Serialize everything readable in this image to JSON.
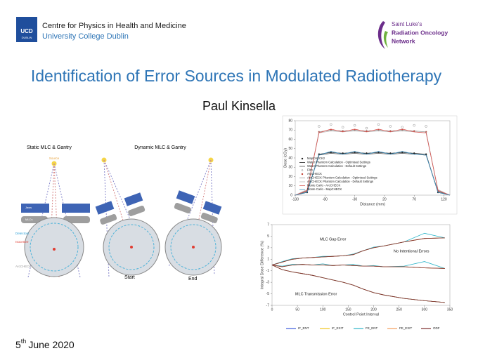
{
  "header": {
    "centre": "Centre for Physics in Health and Medicine",
    "university": "University College Dublin",
    "logo_text": [
      "UCD",
      "DUBLIN"
    ],
    "partner": [
      "Saint Luke's",
      "Radiation Oncology",
      "Network"
    ]
  },
  "title": "Identification of Error Sources in Modulated Radiotherapy",
  "author": "Paul Kinsella",
  "date": {
    "day": "5",
    "suffix": "th",
    "rest": "June 2020"
  },
  "diagram": {
    "static_title": "Static MLC & Gantry",
    "dynamic_title": "Dynamic MLC & Gantry",
    "source": "Source",
    "jaws": "Jaws",
    "mlcs": "MLCs",
    "detectors": "Detectors",
    "isocentre": "Isocentre",
    "arccheck": "ArcCHECK",
    "start": "Start",
    "end": "End"
  },
  "chart_data": [
    {
      "type": "line",
      "xlabel": "Distance (mm)",
      "ylabel": "Dose (cGy)",
      "x": [
        -130,
        -110,
        -90,
        -70,
        -50,
        -30,
        -10,
        10,
        30,
        50,
        70,
        90,
        110,
        130
      ],
      "xlim": [
        -130,
        130
      ],
      "xticks": [
        -130,
        -80,
        -30,
        20,
        70,
        120
      ],
      "ylim": [
        0,
        80
      ],
      "yticks": [
        0,
        10,
        20,
        30,
        40,
        50,
        60,
        70,
        80
      ],
      "series": [
        {
          "name": "MapCHECK2",
          "color": "#1a1a1a",
          "marker": "dot",
          "values": [
            null,
            3,
            44,
            46,
            45,
            46,
            45,
            46,
            45,
            46,
            45,
            44,
            3,
            null
          ]
        },
        {
          "name": "Water Phantom Calculation - Optimised Settings",
          "color": "#222222",
          "values": [
            0,
            3,
            44,
            46,
            45,
            46,
            45,
            46,
            45,
            46,
            45,
            44,
            3,
            0
          ]
        },
        {
          "name": "Water Phantom Calculation - Default Settings",
          "color": "#555555",
          "values": [
            0,
            4,
            43,
            45,
            44,
            45,
            44,
            45,
            44,
            45,
            44,
            43,
            4,
            0
          ]
        },
        {
          "name": "Film",
          "color": "#888888",
          "marker": "circle",
          "values": [
            null,
            null,
            74,
            76,
            73,
            75,
            72,
            76,
            74,
            73,
            75,
            74,
            null,
            null
          ]
        },
        {
          "name": "ArcCHECK",
          "color": "#c0392b",
          "marker": "dot",
          "values": [
            null,
            5,
            68,
            70,
            69,
            70,
            69,
            70,
            69,
            70,
            69,
            68,
            5,
            null
          ]
        },
        {
          "name": "ArcCHECK Phantom Calculation - Optimised Settings",
          "color": "#999999",
          "values": [
            0,
            5,
            68,
            70,
            69,
            70,
            69,
            70,
            69,
            70,
            69,
            68,
            5,
            0
          ]
        },
        {
          "name": "ArcCHECK Phantom Calculation - Default Settings",
          "color": "#bbbbbb",
          "values": [
            0,
            6,
            67,
            69,
            68,
            69,
            68,
            69,
            68,
            69,
            68,
            67,
            6,
            0
          ]
        },
        {
          "name": "Monte Carlo - ArcCHECK",
          "color": "#d9534f",
          "values": [
            0,
            5,
            67,
            71,
            68,
            71,
            68,
            71,
            68,
            71,
            68,
            67,
            5,
            0
          ]
        },
        {
          "name": "Monte Carlo - MapCHECK",
          "color": "#3c8dbc",
          "values": [
            0,
            3,
            43,
            47,
            44,
            47,
            44,
            47,
            44,
            47,
            44,
            43,
            3,
            0
          ]
        }
      ]
    },
    {
      "type": "line",
      "xlabel": "Control Point Interval",
      "ylabel": "Integral Dose Difference (%)",
      "annotations": [
        "MLC Gap Error",
        "No Intentional Errors",
        "MLC Transmission Error"
      ],
      "x": [
        0,
        20,
        40,
        60,
        80,
        100,
        120,
        140,
        160,
        180,
        200,
        220,
        260,
        300,
        340
      ],
      "xlim": [
        0,
        350
      ],
      "xticks": [
        0,
        50,
        100,
        150,
        200,
        250,
        300,
        350
      ],
      "ylim": [
        -7,
        7
      ],
      "yticks": [
        -7,
        -5,
        -3,
        -1,
        1,
        3,
        5,
        7
      ],
      "series": [
        {
          "name": "IF_ENT",
          "color": "#3b5bdb",
          "values": [
            [
              0,
              0.5,
              1,
              1.2,
              1.3,
              1.4,
              1.5,
              1.6,
              1.8,
              2.5,
              3,
              3.3,
              4,
              4.6,
              4.7
            ],
            [
              0,
              -0.3,
              0,
              0.1,
              0,
              0,
              -0.1,
              0,
              -0.1,
              -0.2,
              -0.2,
              -0.3,
              -0.3,
              -0.5,
              -0.6
            ],
            [
              0,
              -0.8,
              -1.2,
              -1.5,
              -1.8,
              -2.2,
              -2.6,
              -3,
              -3.5,
              -4.2,
              -4.8,
              -5.2,
              -5.8,
              -6.2,
              -6.5
            ]
          ]
        },
        {
          "name": "IF_EXIT",
          "color": "#f0c419",
          "values": [
            [
              0,
              0.5,
              1,
              1.2,
              1.3,
              1.4,
              1.5,
              1.6,
              1.8,
              2.5,
              3,
              3.3,
              4,
              4.6,
              4.7
            ],
            [
              0,
              -0.3,
              0,
              0.1,
              0,
              0,
              -0.1,
              0,
              -0.1,
              -0.2,
              -0.2,
              -0.3,
              -0.3,
              -0.5,
              -0.6
            ],
            [
              0,
              -0.8,
              -1.2,
              -1.5,
              -1.8,
              -2.2,
              -2.6,
              -3,
              -3.5,
              -4.2,
              -4.8,
              -5.2,
              -5.8,
              -6.2,
              -6.5
            ]
          ]
        },
        {
          "name": "FE_ENT",
          "color": "#2bb5c9",
          "values": [
            [
              0,
              0.6,
              1.1,
              1.2,
              1.3,
              1.5,
              1.5,
              1.6,
              1.9,
              2.5,
              3.1,
              3.3,
              4,
              5.5,
              4.7
            ],
            [
              0,
              -0.2,
              0.1,
              0.1,
              0,
              0.2,
              -0.1,
              0,
              0.1,
              -0.2,
              -0.1,
              -0.3,
              -0.2,
              0.6,
              -0.6
            ],
            [
              0,
              -0.8,
              -1.2,
              -1.5,
              -1.8,
              -2.2,
              -2.6,
              -3,
              -3.5,
              -4.2,
              -4.8,
              -5.2,
              -5.8,
              -6.2,
              -6.5
            ]
          ]
        },
        {
          "name": "FE_EXIT",
          "color": "#f39c5a",
          "values": [
            [
              0,
              0.5,
              1,
              1.2,
              1.3,
              1.4,
              1.5,
              1.6,
              1.8,
              2.5,
              3,
              3.3,
              4,
              4.6,
              4.7
            ],
            [
              0,
              -0.3,
              0,
              0.1,
              0,
              0,
              -0.1,
              0,
              -0.1,
              -0.2,
              -0.2,
              -0.3,
              -0.3,
              -0.5,
              -0.6
            ],
            [
              0,
              -0.8,
              -1.2,
              -1.5,
              -1.8,
              -2.2,
              -2.6,
              -3,
              -3.5,
              -4.2,
              -4.8,
              -5.2,
              -5.8,
              -6.2,
              -6.5
            ]
          ]
        },
        {
          "name": "ODF",
          "color": "#7b2a2a",
          "values": [
            [
              0,
              0.5,
              1,
              1.2,
              1.3,
              1.4,
              1.5,
              1.6,
              1.8,
              2.5,
              3,
              3.3,
              4,
              4.6,
              4.7
            ],
            [
              0,
              -0.3,
              0,
              0.1,
              0,
              0,
              -0.1,
              0,
              -0.1,
              -0.2,
              -0.2,
              -0.3,
              -0.3,
              -0.5,
              -0.6
            ],
            [
              0,
              -0.8,
              -1.2,
              -1.5,
              -1.8,
              -2.2,
              -2.6,
              -3,
              -3.5,
              -4.2,
              -4.8,
              -5.2,
              -5.8,
              -6.2,
              -6.5
            ]
          ]
        }
      ]
    }
  ]
}
